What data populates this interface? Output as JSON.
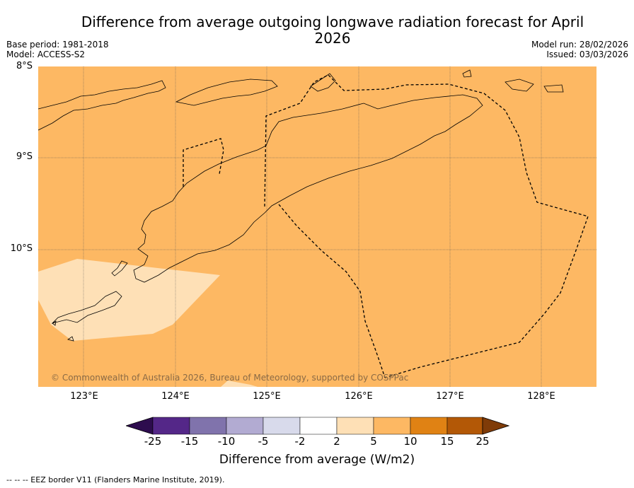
{
  "title": "Difference from average outgoing longwave radiation forecast for April 2026",
  "base_period": "Base period: 1981-2018",
  "model": "Model: ACCESS-S2",
  "model_run": "Model run: 28/02/2026",
  "issued": "Issued: 03/03/2026",
  "lat_labels": [
    "8°S",
    "9°S",
    "10°S"
  ],
  "lon_labels": [
    "123°E",
    "124°E",
    "125°E",
    "126°E",
    "127°E",
    "128°E"
  ],
  "copyright": "© Commonwealth of Australia 2026, Bureau of Meteorology, supported by COSPPac",
  "colorbar": {
    "labels": [
      "-25",
      "-15",
      "-10",
      "-5",
      "-2",
      "2",
      "5",
      "10",
      "15",
      "25"
    ],
    "colors": [
      "#2d0c4e",
      "#542788",
      "#8073ac",
      "#b2abd2",
      "#d8daeb",
      "#ffffff",
      "#fee0b6",
      "#fdb863",
      "#e08214",
      "#b35806",
      "#7f3b08"
    ],
    "title": "Difference from average (W/m2)"
  },
  "footnote": "--  --  -- EEZ border V11 (Flanders Marine Institute, 2019).",
  "map_colors": {
    "background": "#fdb863",
    "light_region": "#fee0b6"
  }
}
